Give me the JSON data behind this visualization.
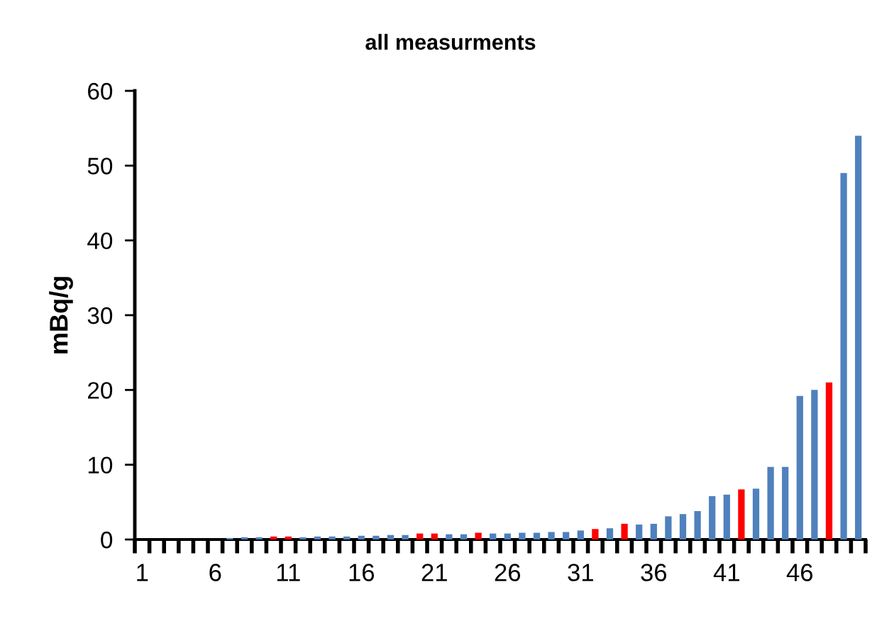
{
  "chart_data": {
    "type": "bar",
    "title": "all measurments",
    "ylabel": "mBq/g",
    "categories": [
      "1",
      null,
      null,
      null,
      null,
      "6",
      null,
      null,
      null,
      null,
      "11",
      null,
      null,
      null,
      null,
      "16",
      null,
      null,
      null,
      null,
      "21",
      null,
      null,
      null,
      null,
      "26",
      null,
      null,
      null,
      null,
      "31",
      null,
      null,
      null,
      null,
      "36",
      null,
      null,
      null,
      null,
      "41",
      null,
      null,
      null,
      null,
      "46",
      null,
      null,
      null,
      null
    ],
    "values": [
      null,
      null,
      null,
      null,
      null,
      null,
      0.2,
      0.3,
      0.3,
      0.4,
      0.4,
      0.3,
      0.4,
      0.4,
      0.4,
      0.5,
      0.5,
      0.6,
      0.6,
      0.8,
      0.8,
      0.7,
      0.7,
      0.9,
      0.8,
      0.8,
      0.9,
      0.9,
      1.0,
      1.0,
      1.2,
      1.4,
      1.5,
      2.1,
      2.0,
      2.1,
      3.1,
      3.4,
      3.8,
      5.8,
      6.0,
      6.7,
      6.8,
      9.7,
      9.7,
      19.2,
      20.0,
      21.0,
      49,
      54
    ],
    "colors": [
      "#4f81bd",
      "#4f81bd",
      "#4f81bd",
      "#4f81bd",
      "#4f81bd",
      "#4f81bd",
      "#4f81bd",
      "#4f81bd",
      "#4f81bd",
      "#ff0000",
      "#ff0000",
      "#4f81bd",
      "#4f81bd",
      "#4f81bd",
      "#4f81bd",
      "#4f81bd",
      "#4f81bd",
      "#4f81bd",
      "#4f81bd",
      "#ff0000",
      "#ff0000",
      "#4f81bd",
      "#4f81bd",
      "#ff0000",
      "#4f81bd",
      "#4f81bd",
      "#4f81bd",
      "#4f81bd",
      "#4f81bd",
      "#4f81bd",
      "#4f81bd",
      "#ff0000",
      "#4f81bd",
      "#ff0000",
      "#4f81bd",
      "#4f81bd",
      "#4f81bd",
      "#4f81bd",
      "#4f81bd",
      "#4f81bd",
      "#4f81bd",
      "#ff0000",
      "#4f81bd",
      "#4f81bd",
      "#4f81bd",
      "#4f81bd",
      "#4f81bd",
      "#ff0000",
      "#4f81bd",
      "#4f81bd"
    ],
    "ylim": [
      0,
      60
    ],
    "yticks": [
      0,
      10,
      20,
      30,
      40,
      50,
      60
    ],
    "grid": false,
    "legend": false
  }
}
